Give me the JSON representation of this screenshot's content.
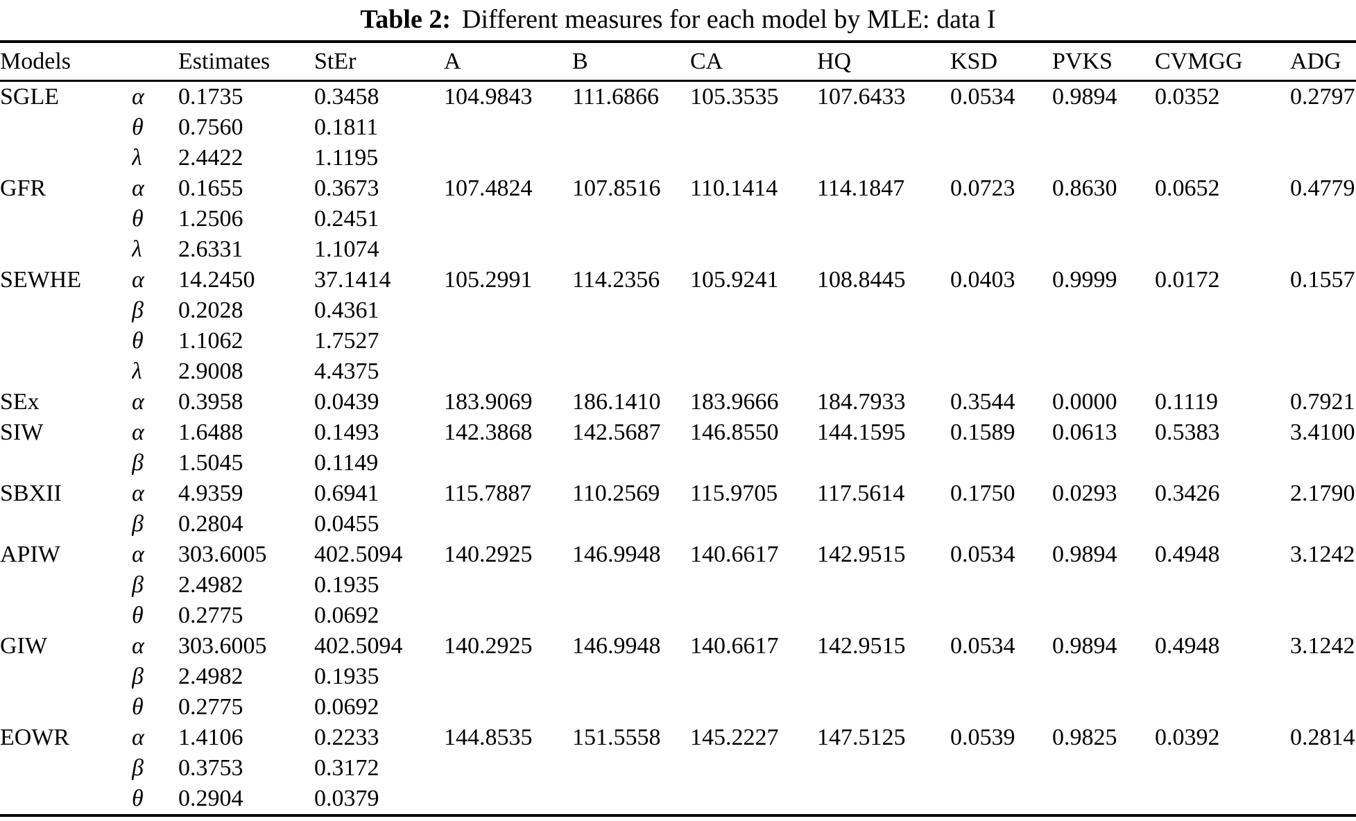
{
  "caption": {
    "label": "Table 2:",
    "text": "Different measures for each model by MLE: data I"
  },
  "table": {
    "headers": [
      "Models",
      "",
      "Estimates",
      "StEr",
      "A",
      "B",
      "CA",
      "HQ",
      "KSD",
      "PVKS",
      "CVMGG",
      "ADG"
    ],
    "measure_keys": [
      "A",
      "B",
      "CA",
      "HQ",
      "KSD",
      "PVKS",
      "CVMGG",
      "ADG"
    ],
    "models": [
      {
        "name": "SGLE",
        "params": [
          {
            "symbol": "α",
            "estimate": "0.1735",
            "ster": "0.3458"
          },
          {
            "symbol": "θ",
            "estimate": "0.7560",
            "ster": "0.1811"
          },
          {
            "symbol": "λ",
            "estimate": "2.4422",
            "ster": "1.1195"
          }
        ],
        "measures": {
          "A": "104.9843",
          "B": "111.6866",
          "CA": "105.3535",
          "HQ": "107.6433",
          "KSD": "0.0534",
          "PVKS": "0.9894",
          "CVMGG": "0.0352",
          "ADG": "0.2797"
        }
      },
      {
        "name": "GFR",
        "params": [
          {
            "symbol": "α",
            "estimate": "0.1655",
            "ster": "0.3673"
          },
          {
            "symbol": "θ",
            "estimate": "1.2506",
            "ster": "0.2451"
          },
          {
            "symbol": "λ",
            "estimate": "2.6331",
            "ster": "1.1074"
          }
        ],
        "measures": {
          "A": "107.4824",
          "B": "107.8516",
          "CA": "110.1414",
          "HQ": "114.1847",
          "KSD": "0.0723",
          "PVKS": "0.8630",
          "CVMGG": "0.0652",
          "ADG": "0.4779"
        }
      },
      {
        "name": "SEWHE",
        "params": [
          {
            "symbol": "α",
            "estimate": "14.2450",
            "ster": "37.1414"
          },
          {
            "symbol": "β",
            "estimate": "0.2028",
            "ster": "0.4361"
          },
          {
            "symbol": "θ",
            "estimate": "1.1062",
            "ster": "1.7527"
          },
          {
            "symbol": "λ",
            "estimate": "2.9008",
            "ster": "4.4375"
          }
        ],
        "measures": {
          "A": "105.2991",
          "B": "114.2356",
          "CA": "105.9241",
          "HQ": "108.8445",
          "KSD": "0.0403",
          "PVKS": "0.9999",
          "CVMGG": "0.0172",
          "ADG": "0.1557"
        }
      },
      {
        "name": "SEx",
        "params": [
          {
            "symbol": "α",
            "estimate": "0.3958",
            "ster": "0.0439"
          }
        ],
        "measures": {
          "A": "183.9069",
          "B": "186.1410",
          "CA": "183.9666",
          "HQ": "184.7933",
          "KSD": "0.3544",
          "PVKS": "0.0000",
          "CVMGG": "0.1119",
          "ADG": "0.7921"
        }
      },
      {
        "name": "SIW",
        "params": [
          {
            "symbol": "α",
            "estimate": "1.6488",
            "ster": "0.1493"
          },
          {
            "symbol": "β",
            "estimate": "1.5045",
            "ster": "0.1149"
          }
        ],
        "measures": {
          "A": "142.3868",
          "B": "142.5687",
          "CA": "146.8550",
          "HQ": "144.1595",
          "KSD": "0.1589",
          "PVKS": "0.0613",
          "CVMGG": "0.5383",
          "ADG": "3.4100"
        }
      },
      {
        "name": "SBXII",
        "params": [
          {
            "symbol": "α",
            "estimate": "4.9359",
            "ster": "0.6941"
          },
          {
            "symbol": "β",
            "estimate": "0.2804",
            "ster": "0.0455"
          }
        ],
        "measures": {
          "A": "115.7887",
          "B": "110.2569",
          "CA": "115.9705",
          "HQ": "117.5614",
          "KSD": "0.1750",
          "PVKS": "0.0293",
          "CVMGG": "0.3426",
          "ADG": "2.1790"
        }
      },
      {
        "name": "APIW",
        "params": [
          {
            "symbol": "α",
            "estimate": "303.6005",
            "ster": "402.5094"
          },
          {
            "symbol": "β",
            "estimate": "2.4982",
            "ster": "0.1935"
          },
          {
            "symbol": "θ",
            "estimate": "0.2775",
            "ster": "0.0692"
          }
        ],
        "measures": {
          "A": "140.2925",
          "B": "146.9948",
          "CA": "140.6617",
          "HQ": "142.9515",
          "KSD": "0.0534",
          "PVKS": "0.9894",
          "CVMGG": "0.4948",
          "ADG": "3.1242"
        }
      },
      {
        "name": "GIW",
        "params": [
          {
            "symbol": "α",
            "estimate": "303.6005",
            "ster": "402.5094"
          },
          {
            "symbol": "β",
            "estimate": "2.4982",
            "ster": "0.1935"
          },
          {
            "symbol": "θ",
            "estimate": "0.2775",
            "ster": "0.0692"
          }
        ],
        "measures": {
          "A": "140.2925",
          "B": "146.9948",
          "CA": "140.6617",
          "HQ": "142.9515",
          "KSD": "0.0534",
          "PVKS": "0.9894",
          "CVMGG": "0.4948",
          "ADG": "3.1242"
        }
      },
      {
        "name": "EOWR",
        "params": [
          {
            "symbol": "α",
            "estimate": "1.4106",
            "ster": "0.2233"
          },
          {
            "symbol": "β",
            "estimate": "0.3753",
            "ster": "0.3172"
          },
          {
            "symbol": "θ",
            "estimate": "0.2904",
            "ster": "0.0379"
          }
        ],
        "measures": {
          "A": "144.8535",
          "B": "151.5558",
          "CA": "145.2227",
          "HQ": "147.5125",
          "KSD": "0.0539",
          "PVKS": "0.9825",
          "CVMGG": "0.0392",
          "ADG": "0.2814"
        }
      }
    ]
  }
}
